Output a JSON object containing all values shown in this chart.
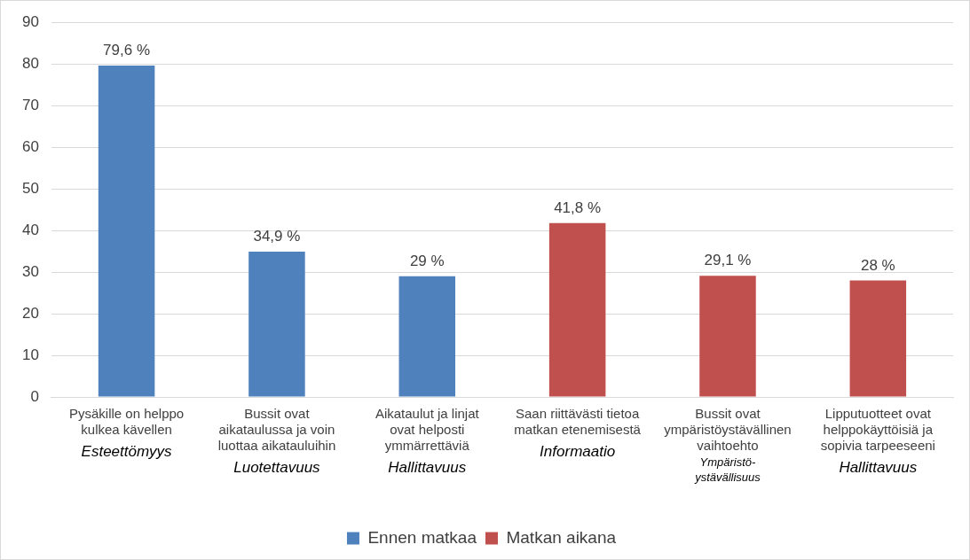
{
  "chart_data": {
    "type": "bar",
    "categories": [
      "Pysäkille on helppo\nkulkea kävellen\n\nEsteettömyys",
      "Bussit ovat\naikataulussa ja voin\nluottaa aikatauluihin\n\nLuotettavuus",
      "Aikataulut ja linjat\novat helposti\nymmärrettäviä\n\nHallittavuus",
      "Saan riittävästi tietoa\nmatkan etenemisestä\n\nInformaatio",
      "Bussit ovat\nympäristöystävällinen\nvaihtoehto\n\nYmpäristö-\nystävällisuus",
      "Lipputuotteet ovat\nhelppokäyttöisiä ja\nsopivia tarpeeseeni\n\nHallittavuus"
    ],
    "series": [
      {
        "name": "Ennen matkaa",
        "color": "#4f81bd",
        "values": [
          79.6,
          34.9,
          29,
          null,
          null,
          null
        ],
        "value_labels": [
          "79,6 %",
          "34,9 %",
          "29 %",
          null,
          null,
          null
        ]
      },
      {
        "name": "Matkan aikana",
        "color": "#c0504d",
        "values": [
          null,
          null,
          null,
          41.8,
          29.1,
          28
        ],
        "value_labels": [
          null,
          null,
          null,
          "41,8 %",
          "29,1 %",
          "28 %"
        ]
      }
    ],
    "ylim": [
      0,
      90
    ],
    "yticks": [
      0,
      10,
      20,
      30,
      40,
      50,
      60,
      70,
      80,
      90
    ],
    "grid": "y",
    "legend": "bottom"
  }
}
